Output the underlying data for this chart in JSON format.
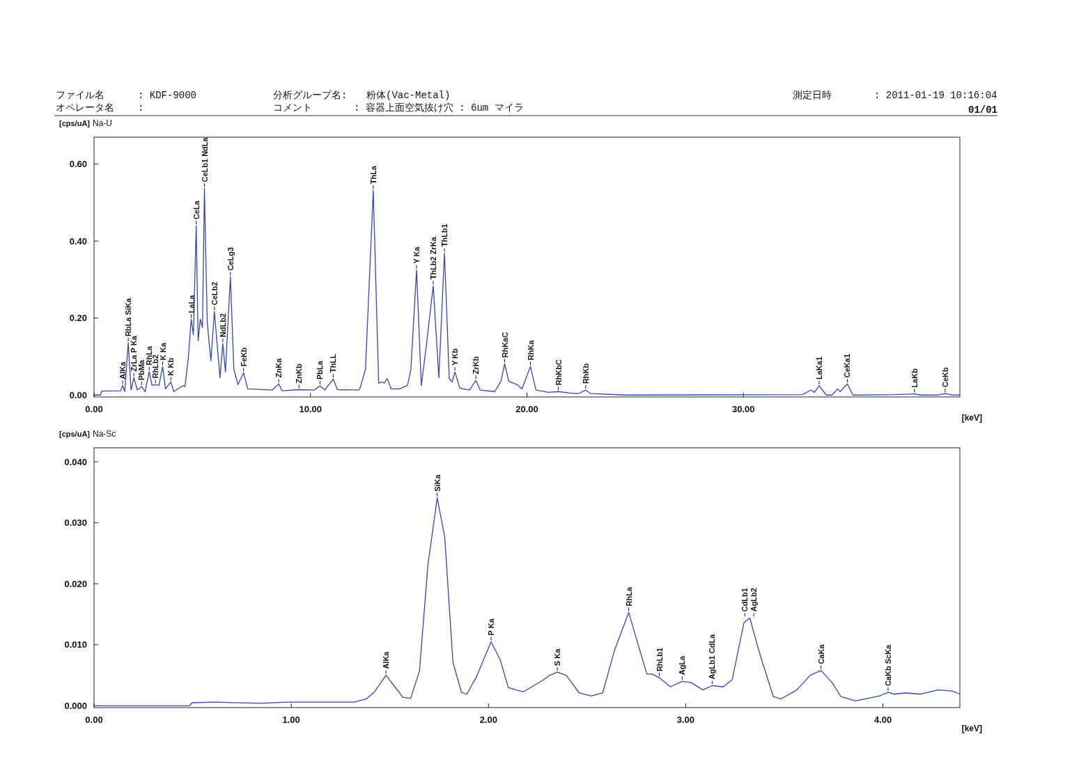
{
  "chart_data": [
    {
      "type": "line",
      "title": "Na-U",
      "ylabel": "[cps/uA]",
      "xlabel": "[keV]",
      "color": "#2f45c8",
      "xlim": [
        0,
        40
      ],
      "ylim": [
        -0.005,
        0.67
      ],
      "xticks": [
        {
          "value": 0,
          "label": "0.00"
        },
        {
          "value": 10,
          "label": "10.00"
        },
        {
          "value": 20,
          "label": "20.00"
        },
        {
          "value": 30,
          "label": "30.00"
        }
      ],
      "yticks": [
        {
          "value": 0,
          "label": "0.00"
        },
        {
          "value": 0.2,
          "label": "0.20"
        },
        {
          "value": 0.4,
          "label": "0.40"
        },
        {
          "value": 0.6,
          "label": "0.60"
        }
      ],
      "x": [
        0,
        0.3,
        0.35,
        1.23,
        1.32,
        1.42,
        1.58,
        1.71,
        1.84,
        2.0,
        2.2,
        2.36,
        2.55,
        2.68,
        2.84,
        3.0,
        3.17,
        3.3,
        3.55,
        3.68,
        4.1,
        4.2,
        4.36,
        4.49,
        4.59,
        4.72,
        4.81,
        4.91,
        5.01,
        5.1,
        5.23,
        5.4,
        5.56,
        5.82,
        5.95,
        6.07,
        6.3,
        6.46,
        6.65,
        6.91,
        7.1,
        8.24,
        8.53,
        8.69,
        9.47,
        10.18,
        10.44,
        10.66,
        11.05,
        11.24,
        12.21,
        12.28,
        12.54,
        12.9,
        13.15,
        13.31,
        13.41,
        13.54,
        13.73,
        14.12,
        14.48,
        14.64,
        14.9,
        15.12,
        15.35,
        15.67,
        15.93,
        16.19,
        16.41,
        16.54,
        16.67,
        16.9,
        17.35,
        17.64,
        17.84,
        18.51,
        18.8,
        18.97,
        19.16,
        19.55,
        19.77,
        20.16,
        20.42,
        21.0,
        21.45,
        21.97,
        22.39,
        22.71,
        22.94,
        24.56,
        32.73,
        33.12,
        33.28,
        33.5,
        33.83,
        34.09,
        34.35,
        34.47,
        34.8,
        35.06,
        36.93,
        37.48,
        37.9,
        38.19,
        39.0,
        39.32,
        39.64,
        40
      ],
      "values": [
        0,
        0,
        0.01,
        0.011,
        0.025,
        0.009,
        0.136,
        0.013,
        0.045,
        0.013,
        0.022,
        0.009,
        0.061,
        0.025,
        0.027,
        0.025,
        0.074,
        0.016,
        0.034,
        0.009,
        0.024,
        0.022,
        0.098,
        0.197,
        0.157,
        0.44,
        0.141,
        0.197,
        0.175,
        0.537,
        0.188,
        0.089,
        0.217,
        0.045,
        0.134,
        0.06,
        0.307,
        0.067,
        0.027,
        0.058,
        0.016,
        0.013,
        0.029,
        0.011,
        0.014,
        0.013,
        0.024,
        0.013,
        0.042,
        0.014,
        0.013,
        0.016,
        0.067,
        0.532,
        0.031,
        0.034,
        0.031,
        0.043,
        0.016,
        0.016,
        0.025,
        0.067,
        0.325,
        0.025,
        0.127,
        0.284,
        0.045,
        0.369,
        0.043,
        0.034,
        0.06,
        0.018,
        0.013,
        0.038,
        0.013,
        0.009,
        0.036,
        0.081,
        0.036,
        0.027,
        0.016,
        0.074,
        0.013,
        0.007,
        0.009,
        0.005,
        0.004,
        0.013,
        0.004,
        0,
        0.001,
        0.013,
        0.007,
        0.024,
        0,
        0,
        0.016,
        0.009,
        0.029,
        0,
        0.001,
        0.002,
        0.003,
        0,
        0,
        0.004,
        0,
        0
      ],
      "annotations": [
        "ファイル名",
        ": KDF-9000",
        "オペレータ名",
        ":",
        "分析グループ名:",
        "粉体(Vac-Metal)",
        "コメント",
        ": 容器上面空気抜け穴 : 6um マイラ",
        "測定日時",
        ": 2011-01-19 10:16:04",
        "01/01",
        {
          "text": "AlKa",
          "x": 1.32,
          "y": 0.025
        },
        {
          "text": "RbLa SiKa",
          "x": 1.58,
          "y": 0.136
        },
        {
          "text": "ZrLa P Ka",
          "x": 1.84,
          "y": 0.045
        },
        {
          "text": "PbMa",
          "x": 2.2,
          "y": 0.022
        },
        {
          "text": "RhLa",
          "x": 2.55,
          "y": 0.061
        },
        {
          "text": "RhLb2",
          "x": 2.84,
          "y": 0.027
        },
        {
          "text": "K Ka",
          "x": 3.17,
          "y": 0.074
        },
        {
          "text": "K Kb",
          "x": 3.55,
          "y": 0.034
        },
        {
          "text": "LaLa",
          "x": 4.49,
          "y": 0.197
        },
        {
          "text": "CeLa",
          "x": 4.72,
          "y": 0.44
        },
        {
          "text": "CeLb1 NdLa",
          "x": 5.1,
          "y": 0.537
        },
        {
          "text": "CeLb2",
          "x": 5.56,
          "y": 0.217
        },
        {
          "text": "NdLb2",
          "x": 5.95,
          "y": 0.134
        },
        {
          "text": "CeLg3",
          "x": 6.3,
          "y": 0.307
        },
        {
          "text": "FeKb",
          "x": 6.91,
          "y": 0.058
        },
        {
          "text": "ZnKa",
          "x": 8.53,
          "y": 0.029
        },
        {
          "text": "ZnKb",
          "x": 9.47,
          "y": 0.014
        },
        {
          "text": "PbLa",
          "x": 10.44,
          "y": 0.024
        },
        {
          "text": "ThLL",
          "x": 11.05,
          "y": 0.042
        },
        {
          "text": "ThLa",
          "x": 12.9,
          "y": 0.532
        },
        {
          "text": "Y Ka",
          "x": 14.9,
          "y": 0.325
        },
        {
          "text": "ThLb2 ZrKa",
          "x": 15.67,
          "y": 0.284
        },
        {
          "text": "ThLb1",
          "x": 16.19,
          "y": 0.369
        },
        {
          "text": "Y Kb",
          "x": 16.67,
          "y": 0.06
        },
        {
          "text": "ZrKb",
          "x": 17.64,
          "y": 0.038
        },
        {
          "text": "RhKaC",
          "x": 18.97,
          "y": 0.081
        },
        {
          "text": "RhKa",
          "x": 20.16,
          "y": 0.074
        },
        {
          "text": "RhKbC",
          "x": 21.45,
          "y": 0.009
        },
        {
          "text": "RhKb",
          "x": 22.71,
          "y": 0.013
        },
        {
          "text": "LaKa1",
          "x": 33.5,
          "y": 0.024
        },
        {
          "text": "CeKa1",
          "x": 34.8,
          "y": 0.029
        },
        {
          "text": "LaKb",
          "x": 37.9,
          "y": 0.003
        },
        {
          "text": "CeKb",
          "x": 39.32,
          "y": 0.004
        }
      ]
    },
    {
      "type": "line",
      "title": "Na-Sc",
      "ylabel": "[cps/uA]",
      "xlabel": "[keV]",
      "color": "#2f45c8",
      "xlim": [
        0,
        4.39
      ],
      "ylim": [
        -0.0003,
        0.0423
      ],
      "xticks": [
        {
          "value": 0,
          "label": "0.00"
        },
        {
          "value": 1,
          "label": "1.00"
        },
        {
          "value": 2,
          "label": "2.00"
        },
        {
          "value": 3,
          "label": "3.00"
        },
        {
          "value": 4,
          "label": "4.00"
        }
      ],
      "yticks": [
        {
          "value": 0,
          "label": "0.000"
        },
        {
          "value": 0.01,
          "label": "0.010"
        },
        {
          "value": 0.02,
          "label": "0.020"
        },
        {
          "value": 0.03,
          "label": "0.030"
        },
        {
          "value": 0.04,
          "label": "0.040"
        }
      ],
      "x": [
        0,
        0.484,
        0.498,
        0.61,
        0.84,
        0.98,
        1.32,
        1.38,
        1.42,
        1.48,
        1.54,
        1.565,
        1.605,
        1.65,
        1.693,
        1.74,
        1.778,
        1.82,
        1.863,
        1.89,
        1.94,
        2.013,
        2.06,
        2.1,
        2.148,
        2.177,
        2.22,
        2.281,
        2.311,
        2.349,
        2.394,
        2.46,
        2.52,
        2.579,
        2.639,
        2.711,
        2.759,
        2.803,
        2.83,
        2.866,
        2.922,
        2.982,
        3.027,
        3.087,
        3.134,
        3.191,
        3.236,
        3.295,
        3.325,
        3.37,
        3.444,
        3.482,
        3.564,
        3.631,
        3.686,
        3.742,
        3.787,
        3.861,
        3.982,
        4.026,
        4.056,
        4.115,
        4.19,
        4.28,
        4.354,
        4.39
      ],
      "values": [
        0,
        0,
        0.0005,
        0.0006,
        0.0004,
        0.0006,
        0.0006,
        0.0011,
        0.0022,
        0.005,
        0.0025,
        0.0014,
        0.0012,
        0.0057,
        0.0231,
        0.0341,
        0.0277,
        0.0071,
        0.0022,
        0.0019,
        0.0048,
        0.0105,
        0.0075,
        0.003,
        0.0025,
        0.0023,
        0.0031,
        0.0043,
        0.005,
        0.0055,
        0.005,
        0.0021,
        0.0016,
        0.0021,
        0.0091,
        0.0153,
        0.01,
        0.0052,
        0.0052,
        0.0046,
        0.0031,
        0.004,
        0.0038,
        0.0026,
        0.0033,
        0.0031,
        0.0043,
        0.0136,
        0.0144,
        0.0091,
        0.0015,
        0.0011,
        0.0026,
        0.005,
        0.0058,
        0.0038,
        0.0015,
        0.0008,
        0.0016,
        0.0022,
        0.0019,
        0.0021,
        0.0019,
        0.0026,
        0.0024,
        0.0019
      ],
      "annotations": [
        {
          "text": "AlKa",
          "x": 1.48,
          "y": 0.005
        },
        {
          "text": "SiKa",
          "x": 1.74,
          "y": 0.0341
        },
        {
          "text": "P Ka",
          "x": 2.013,
          "y": 0.0105
        },
        {
          "text": "S Ka",
          "x": 2.349,
          "y": 0.0055
        },
        {
          "text": "RhLa",
          "x": 2.711,
          "y": 0.0153
        },
        {
          "text": "RhLb1",
          "x": 2.866,
          "y": 0.0046
        },
        {
          "text": "AgLa",
          "x": 2.982,
          "y": 0.004
        },
        {
          "text": "AgLb1 CdLa",
          "x": 3.134,
          "y": 0.0033
        },
        {
          "text": "CdLb1",
          "x": 3.3,
          "y": 0.0144
        },
        {
          "text": "AgLb2",
          "x": 3.345,
          "y": 0.0144
        },
        {
          "text": "CaKa",
          "x": 3.686,
          "y": 0.0058
        },
        {
          "text": "CaKb ScKa",
          "x": 4.026,
          "y": 0.0022
        }
      ]
    }
  ]
}
